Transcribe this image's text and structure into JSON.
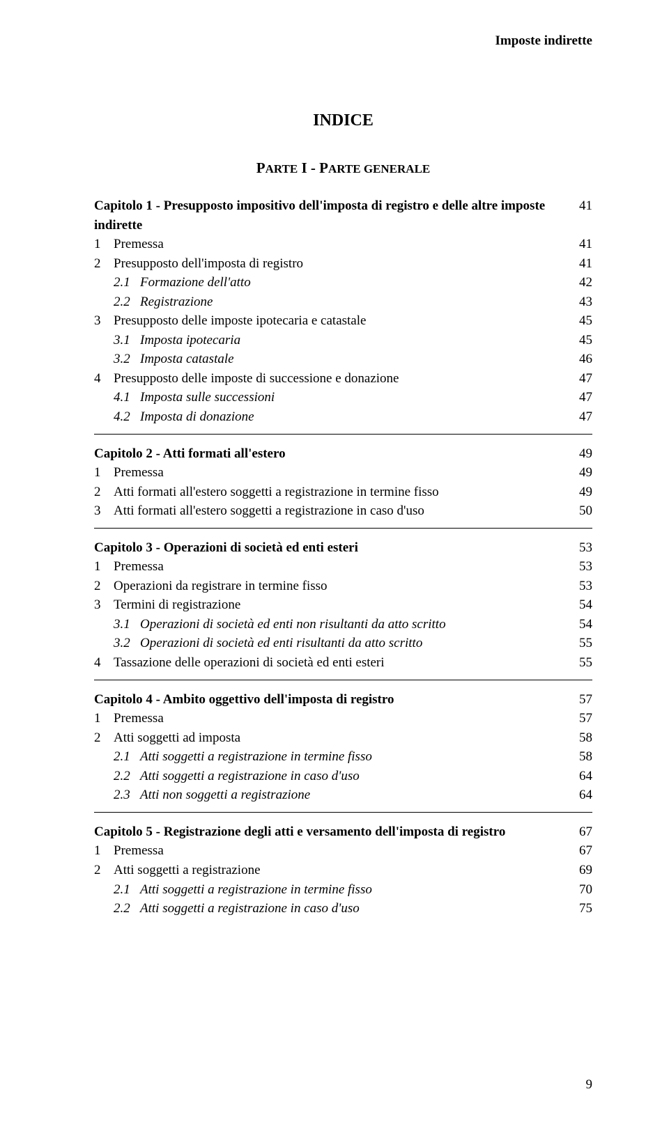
{
  "header": "Imposte indirette",
  "title": "INDICE",
  "part_label_prefix": "P",
  "part_label_rest_1": "ARTE",
  "part_label_mid": " I - P",
  "part_label_rest_2": "ARTE GENERALE",
  "chapters": [
    {
      "heading": "Capitolo 1 - Presupposto impositivo dell'imposta di registro e delle altre imposte indirette",
      "page": 41,
      "entries": [
        {
          "num": "1",
          "label": "Premessa",
          "page": 41
        },
        {
          "num": "2",
          "label": "Presupposto dell'imposta di registro",
          "page": 41
        },
        {
          "subnum": "2.1",
          "label": "Formazione dell'atto",
          "italic": true,
          "page": 42
        },
        {
          "subnum": "2.2",
          "label": "Registrazione",
          "italic": true,
          "page": 43
        },
        {
          "num": "3",
          "label": "Presupposto delle imposte ipotecaria e catastale",
          "page": 45
        },
        {
          "subnum": "3.1",
          "label": "Imposta ipotecaria",
          "italic": true,
          "page": 45
        },
        {
          "subnum": "3.2",
          "label": "Imposta catastale",
          "italic": true,
          "page": 46
        },
        {
          "num": "4",
          "label": "Presupposto delle imposte di successione e donazione",
          "page": 47
        },
        {
          "subnum": "4.1",
          "label": "Imposta sulle successioni",
          "italic": true,
          "page": 47
        },
        {
          "subnum": "4.2",
          "label": "Imposta di donazione",
          "italic": true,
          "page": 47
        }
      ]
    },
    {
      "heading": "Capitolo 2 - Atti formati all'estero",
      "page": 49,
      "entries": [
        {
          "num": "1",
          "label": "Premessa",
          "page": 49
        },
        {
          "num": "2",
          "label": "Atti formati all'estero soggetti a registrazione in termine fisso",
          "page": 49
        },
        {
          "num": "3",
          "label": "Atti formati all'estero soggetti a registrazione in caso d'uso",
          "page": 50
        }
      ]
    },
    {
      "heading": "Capitolo 3 - Operazioni di società ed enti esteri",
      "page": 53,
      "entries": [
        {
          "num": "1",
          "label": "Premessa",
          "page": 53
        },
        {
          "num": "2",
          "label": "Operazioni da registrare in termine fisso",
          "page": 53
        },
        {
          "num": "3",
          "label": "Termini di registrazione",
          "page": 54
        },
        {
          "subnum": "3.1",
          "label": "Operazioni di società ed enti non risultanti da atto scritto",
          "italic": true,
          "page": 54
        },
        {
          "subnum": "3.2",
          "label": "Operazioni di società ed enti risultanti da atto scritto",
          "italic": true,
          "page": 55
        },
        {
          "num": "4",
          "label": "Tassazione delle operazioni di società ed enti esteri",
          "page": 55
        }
      ]
    },
    {
      "heading": "Capitolo 4 - Ambito oggettivo dell'imposta di registro",
      "page": 57,
      "entries": [
        {
          "num": "1",
          "label": "Premessa",
          "page": 57
        },
        {
          "num": "2",
          "label": "Atti soggetti ad imposta",
          "page": 58
        },
        {
          "subnum": "2.1",
          "label": "Atti soggetti a registrazione in termine fisso",
          "italic": true,
          "page": 58
        },
        {
          "subnum": "2.2",
          "label": "Atti soggetti a registrazione in caso d'uso",
          "italic": true,
          "page": 64
        },
        {
          "subnum": "2.3",
          "label": "Atti non soggetti a registrazione",
          "italic": true,
          "page": 64
        }
      ]
    },
    {
      "heading": "Capitolo 5 - Registrazione degli atti e versamento dell'imposta di registro",
      "page": 67,
      "entries": [
        {
          "num": "1",
          "label": "Premessa",
          "page": 67
        },
        {
          "num": "2",
          "label": "Atti soggetti a registrazione",
          "page": 69
        },
        {
          "subnum": "2.1",
          "label": "Atti soggetti a registrazione in termine fisso",
          "italic": true,
          "page": 70
        },
        {
          "subnum": "2.2",
          "label": "Atti soggetti a registrazione in caso d'uso",
          "italic": true,
          "page": 75
        }
      ]
    }
  ],
  "footer_page": "9"
}
